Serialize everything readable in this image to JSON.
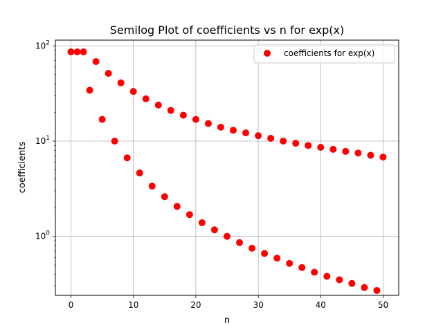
{
  "chart_data": {
    "type": "scatter",
    "title": "Semilog Plot of coefficients vs n for exp(x)",
    "xlabel": "n",
    "ylabel": "coefficients",
    "xlim": [
      -2.5,
      52.5
    ],
    "ylim": [
      0.24,
      115
    ],
    "yscale": "log",
    "grid": true,
    "legend_position": "top-right",
    "x_ticks": [
      0,
      10,
      20,
      30,
      40,
      50
    ],
    "y_ticks": [
      {
        "value": 1,
        "base": "10",
        "exp": "0"
      },
      {
        "value": 10,
        "base": "10",
        "exp": "1"
      },
      {
        "value": 100,
        "base": "10",
        "exp": "2"
      }
    ],
    "series": [
      {
        "name": "coefficients for exp(x)",
        "color": "#ff0000",
        "marker": "circle",
        "points": [
          [
            0,
            86.5
          ],
          [
            1,
            86.5
          ],
          [
            2,
            86.5
          ],
          [
            3,
            34.2
          ],
          [
            4,
            68.5
          ],
          [
            5,
            16.9
          ],
          [
            6,
            51.5
          ],
          [
            7,
            10.0
          ],
          [
            8,
            40.9
          ],
          [
            9,
            6.67
          ],
          [
            10,
            33.2
          ],
          [
            11,
            4.63
          ],
          [
            12,
            27.8
          ],
          [
            13,
            3.37
          ],
          [
            14,
            23.9
          ],
          [
            15,
            2.61
          ],
          [
            16,
            21.0
          ],
          [
            17,
            2.06
          ],
          [
            18,
            18.7
          ],
          [
            19,
            1.69
          ],
          [
            20,
            16.9
          ],
          [
            21,
            1.39
          ],
          [
            22,
            15.3
          ],
          [
            23,
            1.17
          ],
          [
            24,
            14.0
          ],
          [
            25,
            1.0
          ],
          [
            26,
            13.0
          ],
          [
            27,
            0.86
          ],
          [
            28,
            12.2
          ],
          [
            29,
            0.75
          ],
          [
            30,
            11.4
          ],
          [
            31,
            0.66
          ],
          [
            32,
            10.7
          ],
          [
            33,
            0.59
          ],
          [
            34,
            10.0
          ],
          [
            35,
            0.52
          ],
          [
            36,
            9.5
          ],
          [
            37,
            0.47
          ],
          [
            38,
            9.0
          ],
          [
            39,
            0.42
          ],
          [
            40,
            8.6
          ],
          [
            41,
            0.38
          ],
          [
            42,
            8.2
          ],
          [
            43,
            0.35
          ],
          [
            44,
            7.8
          ],
          [
            45,
            0.32
          ],
          [
            46,
            7.5
          ],
          [
            47,
            0.29
          ],
          [
            48,
            7.1
          ],
          [
            49,
            0.27
          ],
          [
            50,
            6.8
          ]
        ]
      }
    ]
  }
}
